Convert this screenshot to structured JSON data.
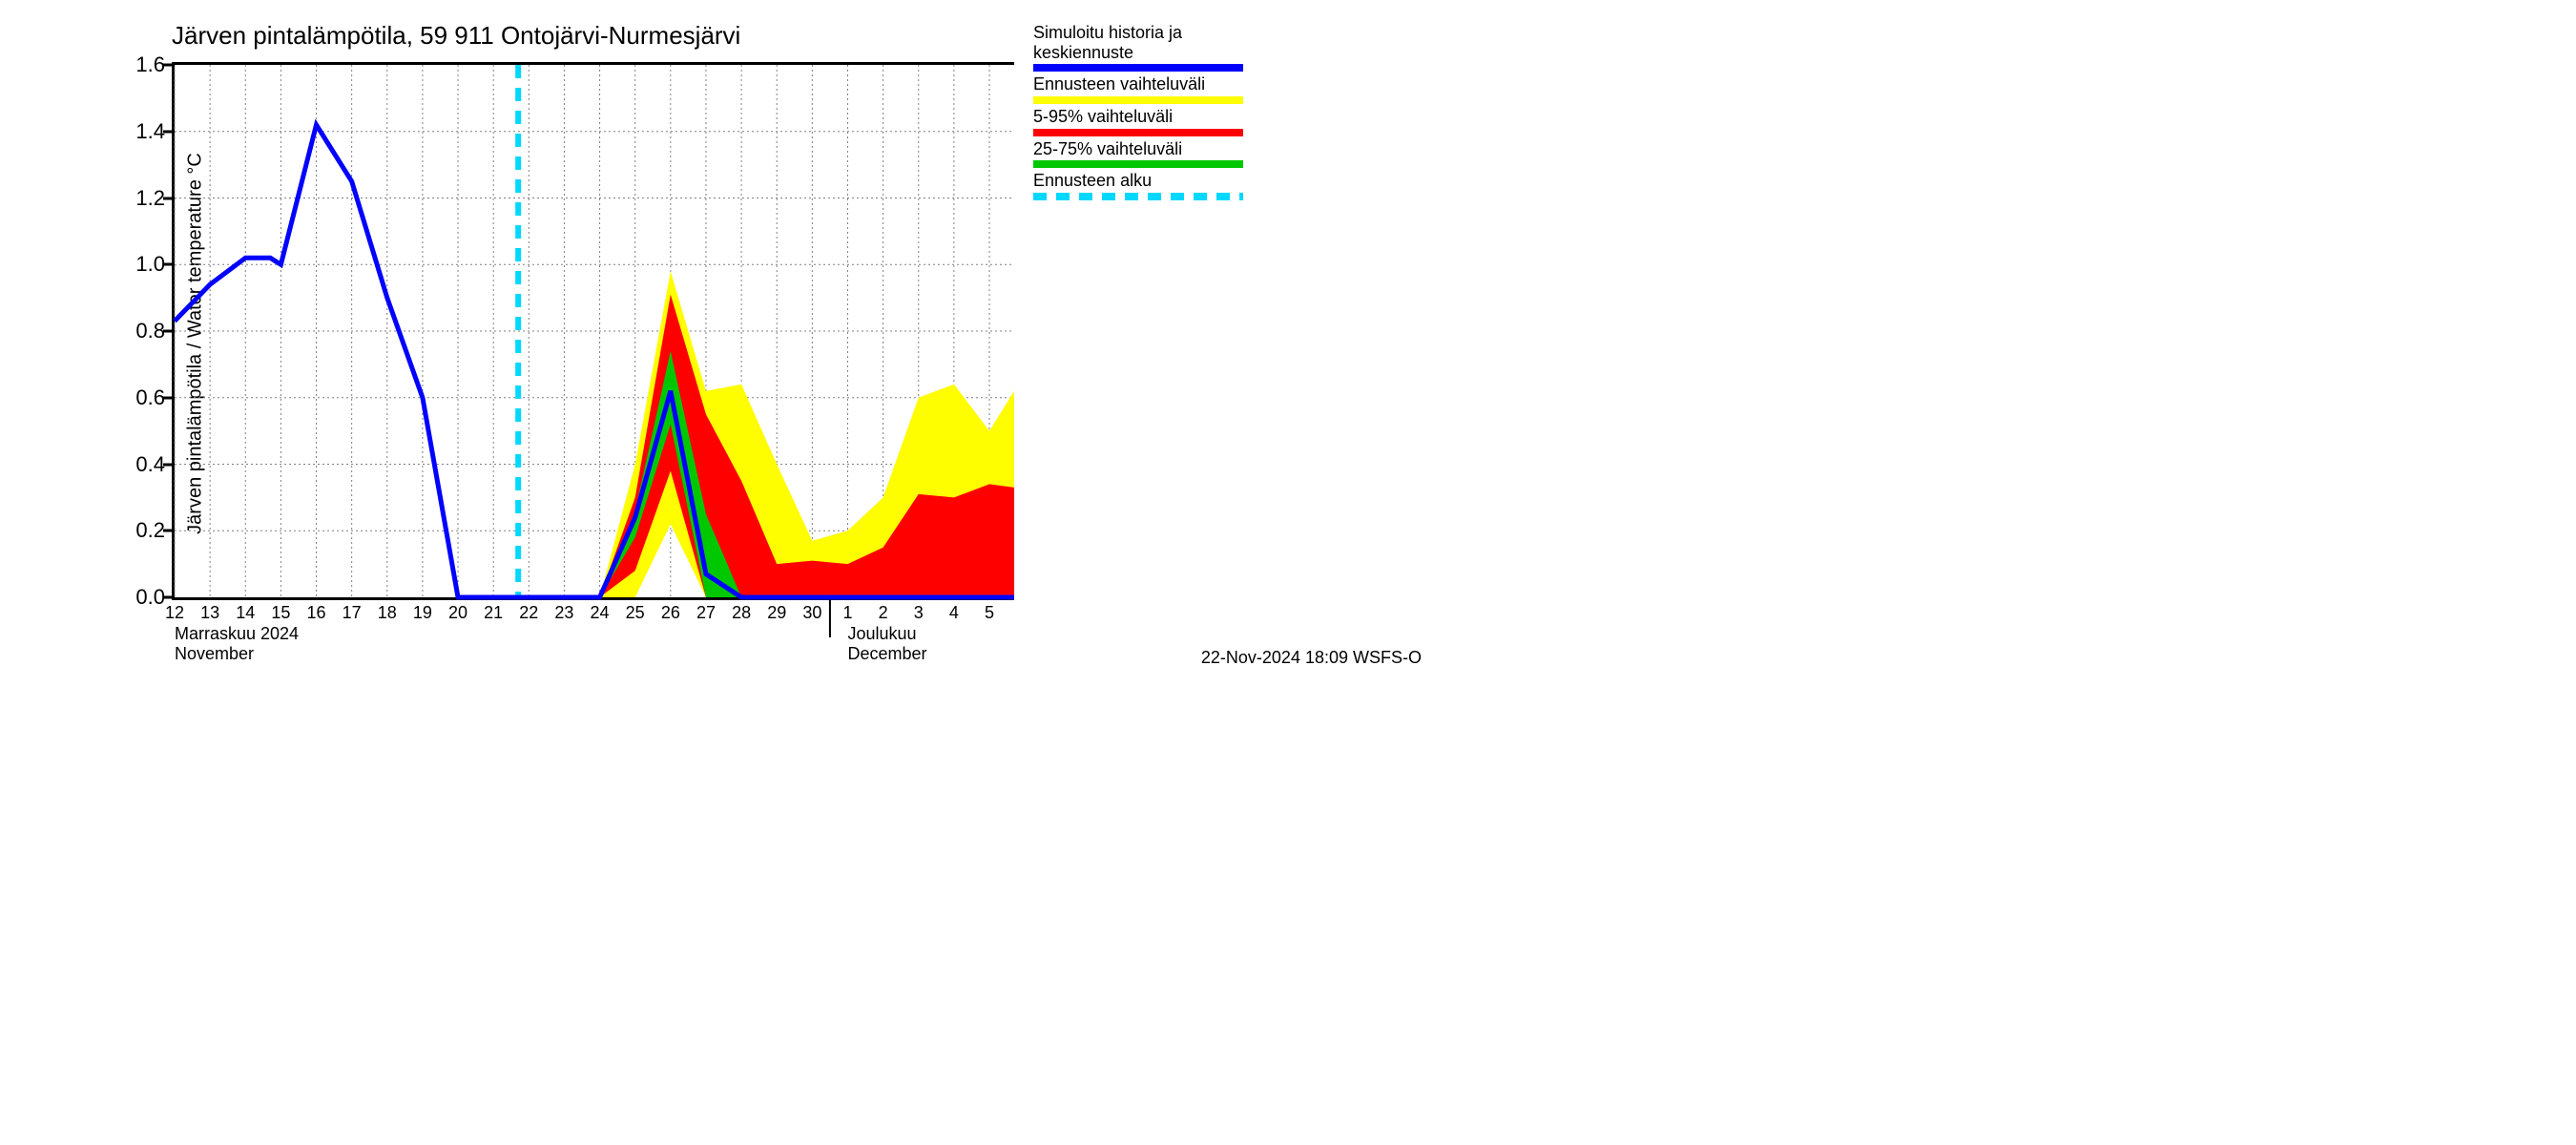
{
  "chart": {
    "type": "line-with-bands",
    "title": "Järven pintalämpötila, 59 911 Ontojärvi-Nurmesjärvi",
    "y_axis_label": "Järven pintalämpötila / Water temperature °C",
    "timestamp": "22-Nov-2024 18:09 WSFS-O",
    "background_color": "#ffffff",
    "grid_color": "#808080",
    "grid_dash": "2 3",
    "axis_color": "#000000",
    "title_fontsize": 26,
    "label_fontsize": 20,
    "tick_fontsize": 22,
    "xtick_fontsize": 18,
    "ylim": [
      0.0,
      1.6
    ],
    "yticks": [
      0.0,
      0.2,
      0.4,
      0.6,
      0.8,
      1.0,
      1.2,
      1.4,
      1.6
    ],
    "ytick_labels": [
      "0.0",
      "0.2",
      "0.4",
      "0.6",
      "0.8",
      "1.0",
      "1.2",
      "1.4",
      "1.6"
    ],
    "x_days": [
      "12",
      "13",
      "14",
      "15",
      "16",
      "17",
      "18",
      "19",
      "20",
      "21",
      "22",
      "23",
      "24",
      "25",
      "26",
      "27",
      "28",
      "29",
      "30",
      "1",
      "2",
      "3",
      "4",
      "5"
    ],
    "x_count": 24,
    "x_month_labels": [
      {
        "idx": 0,
        "fi": "Marraskuu 2024",
        "en": "November"
      },
      {
        "idx": 19,
        "fi": "Joulukuu",
        "en": "December"
      }
    ],
    "month_divider_idx": 19,
    "forecast_start_idx": 9.7,
    "colors": {
      "history_line": "#0000ff",
      "full_range": "#fffe00",
      "p5_95": "#ff0000",
      "p25_75": "#00c800",
      "forecast_marker": "#00d8ff"
    },
    "line_width": 5,
    "series": {
      "history": [
        [
          0,
          0.83
        ],
        [
          1,
          0.94
        ],
        [
          2,
          1.02
        ],
        [
          2.7,
          1.02
        ],
        [
          3,
          1.0
        ],
        [
          4,
          1.42
        ],
        [
          5,
          1.25
        ],
        [
          6,
          0.9
        ],
        [
          7,
          0.6
        ],
        [
          8,
          0.0
        ],
        [
          9,
          0.0
        ],
        [
          10,
          0.0
        ],
        [
          11,
          0.0
        ],
        [
          12,
          0.0
        ],
        [
          13,
          0.24
        ],
        [
          14,
          0.62
        ],
        [
          15,
          0.07
        ],
        [
          16,
          0.0
        ],
        [
          17,
          0.0
        ],
        [
          18,
          0.0
        ],
        [
          19,
          0.0
        ],
        [
          20,
          0.0
        ],
        [
          21,
          0.0
        ],
        [
          22,
          0.0
        ],
        [
          23,
          0.0
        ],
        [
          23.7,
          0.0
        ]
      ],
      "full_low": [
        [
          12,
          0.0
        ],
        [
          13,
          0.0
        ],
        [
          14,
          0.22
        ],
        [
          15,
          0.0
        ],
        [
          16,
          0.0
        ],
        [
          17,
          0.0
        ],
        [
          18,
          0.0
        ],
        [
          19,
          0.0
        ],
        [
          20,
          0.0
        ],
        [
          21,
          0.0
        ],
        [
          22,
          0.0
        ],
        [
          23,
          0.0
        ],
        [
          23.7,
          0.0
        ]
      ],
      "full_high": [
        [
          12,
          0.0
        ],
        [
          13,
          0.4
        ],
        [
          14,
          0.98
        ],
        [
          15,
          0.62
        ],
        [
          16,
          0.64
        ],
        [
          17,
          0.4
        ],
        [
          18,
          0.17
        ],
        [
          19,
          0.2
        ],
        [
          20,
          0.3
        ],
        [
          21,
          0.6
        ],
        [
          22,
          0.64
        ],
        [
          23,
          0.5
        ],
        [
          23.7,
          0.62
        ]
      ],
      "p5_low": [
        [
          12,
          0.0
        ],
        [
          13,
          0.08
        ],
        [
          14,
          0.38
        ],
        [
          15,
          0.0
        ],
        [
          16,
          0.0
        ],
        [
          17,
          0.0
        ],
        [
          18,
          0.0
        ],
        [
          19,
          0.0
        ],
        [
          20,
          0.0
        ],
        [
          21,
          0.0
        ],
        [
          22,
          0.0
        ],
        [
          23,
          0.0
        ],
        [
          23.7,
          0.0
        ]
      ],
      "p5_high": [
        [
          12,
          0.0
        ],
        [
          13,
          0.3
        ],
        [
          14,
          0.91
        ],
        [
          15,
          0.55
        ],
        [
          16,
          0.35
        ],
        [
          17,
          0.1
        ],
        [
          18,
          0.11
        ],
        [
          19,
          0.1
        ],
        [
          20,
          0.15
        ],
        [
          21,
          0.31
        ],
        [
          22,
          0.3
        ],
        [
          23,
          0.34
        ],
        [
          23.7,
          0.33
        ]
      ],
      "p25_low": [
        [
          12,
          0.0
        ],
        [
          13,
          0.18
        ],
        [
          14,
          0.52
        ],
        [
          15,
          0.0
        ],
        [
          16,
          0.0
        ],
        [
          17,
          0.0
        ],
        [
          18,
          0.0
        ],
        [
          19,
          0.0
        ],
        [
          20,
          0.0
        ],
        [
          21,
          0.0
        ],
        [
          22,
          0.0
        ],
        [
          23,
          0.0
        ],
        [
          23.7,
          0.0
        ]
      ],
      "p25_high": [
        [
          12,
          0.0
        ],
        [
          13,
          0.26
        ],
        [
          14,
          0.74
        ],
        [
          15,
          0.25
        ],
        [
          16,
          0.0
        ],
        [
          17,
          0.0
        ],
        [
          18,
          0.0
        ],
        [
          19,
          0.0
        ],
        [
          20,
          0.0
        ],
        [
          21,
          0.0
        ],
        [
          22,
          0.0
        ],
        [
          23,
          0.0
        ],
        [
          23.7,
          0.0
        ]
      ]
    }
  },
  "legend": [
    {
      "label": "Simuloitu historia ja keskiennuste",
      "type": "swatch",
      "color": "#0000ff"
    },
    {
      "label": "Ennusteen vaihteluväli",
      "type": "swatch",
      "color": "#fffe00"
    },
    {
      "label": "5-95% vaihteluväli",
      "type": "swatch",
      "color": "#ff0000"
    },
    {
      "label": "25-75% vaihteluväli",
      "type": "swatch",
      "color": "#00c800"
    },
    {
      "label": "Ennusteen alku",
      "type": "dash",
      "color": "#00d8ff"
    }
  ]
}
